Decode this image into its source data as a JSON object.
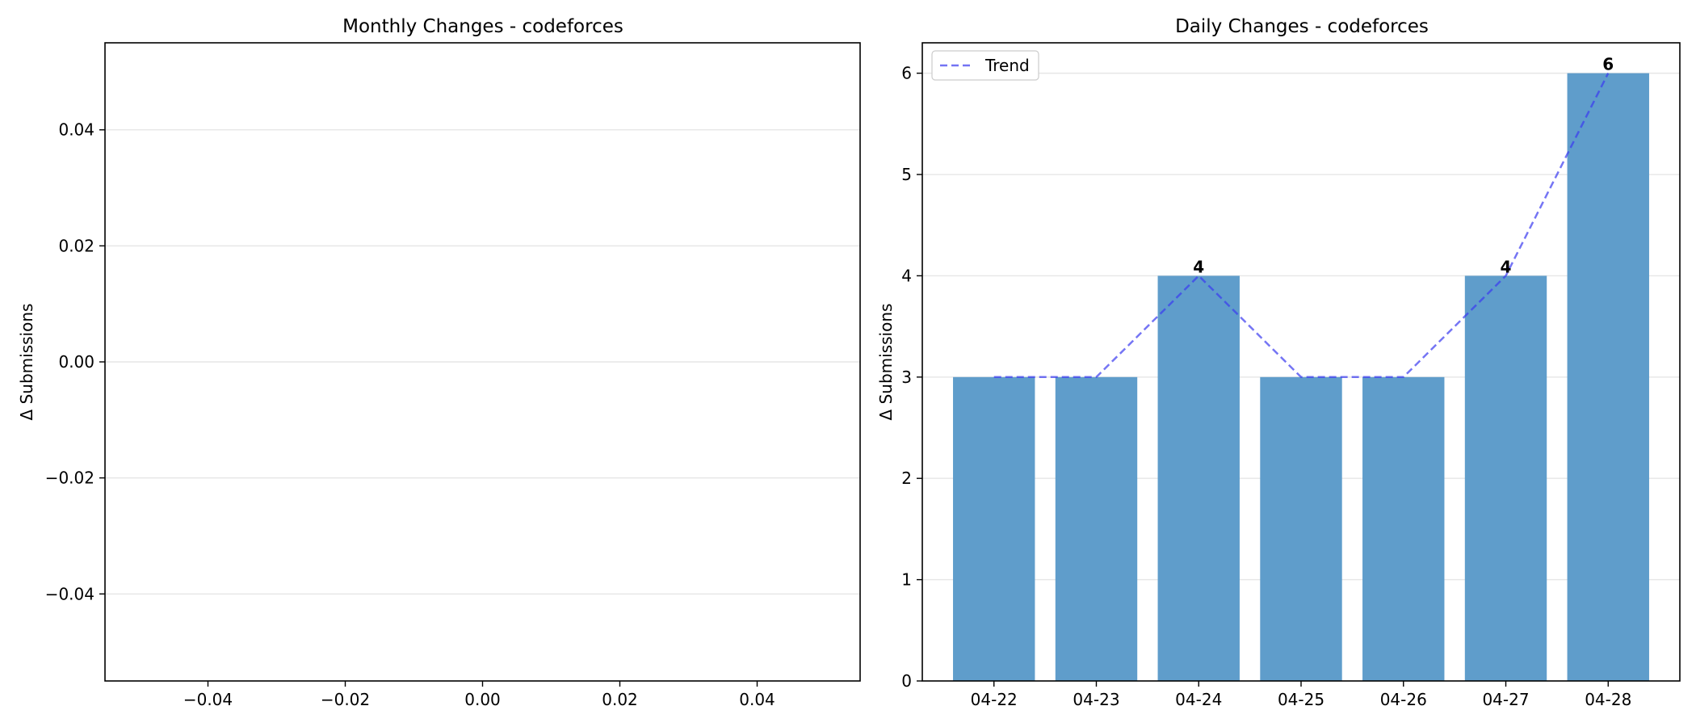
{
  "chart_data": [
    {
      "type": "bar",
      "title": "Monthly Changes - codeforces",
      "xlabel": "",
      "ylabel": "Δ Submissions",
      "categories": [],
      "values": [],
      "xlim": [
        -0.055,
        0.055
      ],
      "ylim": [
        -0.055,
        0.055
      ],
      "xticks": [
        "−0.04",
        "−0.02",
        "0.00",
        "0.02",
        "0.04"
      ],
      "xtick_values": [
        -0.04,
        -0.02,
        0.0,
        0.02,
        0.04
      ],
      "yticks": [
        "−0.04",
        "−0.02",
        "0.00",
        "0.02",
        "0.04"
      ],
      "ytick_values": [
        -0.04,
        -0.02,
        0.0,
        0.02,
        0.04
      ],
      "grid": "y"
    },
    {
      "type": "bar",
      "title": "Daily Changes - codeforces",
      "xlabel": "",
      "ylabel": "Δ Submissions",
      "categories": [
        "04-22",
        "04-23",
        "04-24",
        "04-25",
        "04-26",
        "04-27",
        "04-28"
      ],
      "values": [
        3,
        3,
        4,
        3,
        3,
        4,
        6
      ],
      "data_labels": [
        "",
        "",
        "4",
        "",
        "",
        "4",
        "6"
      ],
      "bar_color": "#5f9dcb",
      "trend": {
        "name": "Trend",
        "values": [
          3,
          3,
          4,
          3,
          3,
          4,
          6
        ],
        "color": "#3a3af0",
        "style": "dashed"
      },
      "ylim": [
        0,
        6.3
      ],
      "yticks": [
        "0",
        "1",
        "2",
        "3",
        "4",
        "5",
        "6"
      ],
      "ytick_values": [
        0,
        1,
        2,
        3,
        4,
        5,
        6
      ],
      "legend": "top-left",
      "grid": "y"
    }
  ]
}
